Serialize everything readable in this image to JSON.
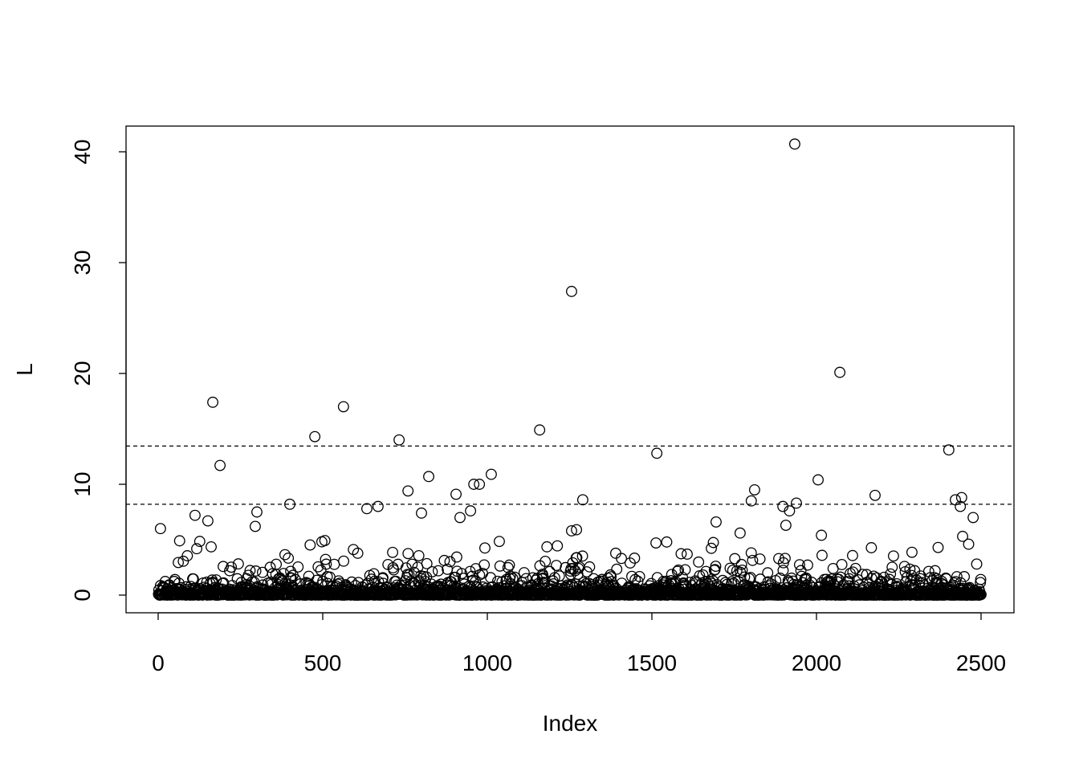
{
  "chart_data": {
    "type": "scatter",
    "title": "",
    "xlabel": "Index",
    "ylabel": "L",
    "xlim": [
      -100,
      2600
    ],
    "ylim": [
      -1.6,
      42.7
    ],
    "x_ticks": [
      "0",
      "500",
      "1000",
      "1500",
      "2000",
      "2500"
    ],
    "y_ticks": [
      "0",
      "10",
      "20",
      "30",
      "40"
    ],
    "grid": false,
    "legend": "none",
    "n_points": 2500,
    "marker": "open-circle",
    "reference_lines": [
      {
        "y": 13.45,
        "style": "dashed"
      },
      {
        "y": 8.2,
        "style": "dashed"
      }
    ],
    "notable_points": [
      {
        "x": 7,
        "y": 6.0
      },
      {
        "x": 112,
        "y": 7.2
      },
      {
        "x": 151,
        "y": 6.7
      },
      {
        "x": 166,
        "y": 17.4
      },
      {
        "x": 188,
        "y": 11.7
      },
      {
        "x": 295,
        "y": 6.2
      },
      {
        "x": 300,
        "y": 7.5
      },
      {
        "x": 400,
        "y": 8.2
      },
      {
        "x": 476,
        "y": 14.3
      },
      {
        "x": 563,
        "y": 17.0
      },
      {
        "x": 634,
        "y": 7.8
      },
      {
        "x": 668,
        "y": 8.0
      },
      {
        "x": 732,
        "y": 14.0
      },
      {
        "x": 759,
        "y": 9.4
      },
      {
        "x": 800,
        "y": 7.4
      },
      {
        "x": 822,
        "y": 10.7
      },
      {
        "x": 905,
        "y": 9.1
      },
      {
        "x": 917,
        "y": 7.0
      },
      {
        "x": 949,
        "y": 7.6
      },
      {
        "x": 959,
        "y": 10.0
      },
      {
        "x": 976,
        "y": 10.0
      },
      {
        "x": 1012,
        "y": 10.9
      },
      {
        "x": 1159,
        "y": 14.9
      },
      {
        "x": 1256,
        "y": 27.4
      },
      {
        "x": 1256,
        "y": 5.8
      },
      {
        "x": 1271,
        "y": 5.9
      },
      {
        "x": 1290,
        "y": 8.6
      },
      {
        "x": 1515,
        "y": 12.8
      },
      {
        "x": 1695,
        "y": 6.6
      },
      {
        "x": 1768,
        "y": 5.6
      },
      {
        "x": 1802,
        "y": 8.5
      },
      {
        "x": 1812,
        "y": 9.5
      },
      {
        "x": 1898,
        "y": 8.0
      },
      {
        "x": 1907,
        "y": 6.3
      },
      {
        "x": 1918,
        "y": 7.6
      },
      {
        "x": 1934,
        "y": 40.7
      },
      {
        "x": 1939,
        "y": 8.3
      },
      {
        "x": 2005,
        "y": 10.4
      },
      {
        "x": 2015,
        "y": 5.4
      },
      {
        "x": 2071,
        "y": 20.1
      },
      {
        "x": 2178,
        "y": 9.0
      },
      {
        "x": 2402,
        "y": 13.1
      },
      {
        "x": 2422,
        "y": 8.6
      },
      {
        "x": 2437,
        "y": 8.0
      },
      {
        "x": 2441,
        "y": 8.8
      },
      {
        "x": 2444,
        "y": 5.3
      },
      {
        "x": 2476,
        "y": 7.0
      }
    ]
  }
}
